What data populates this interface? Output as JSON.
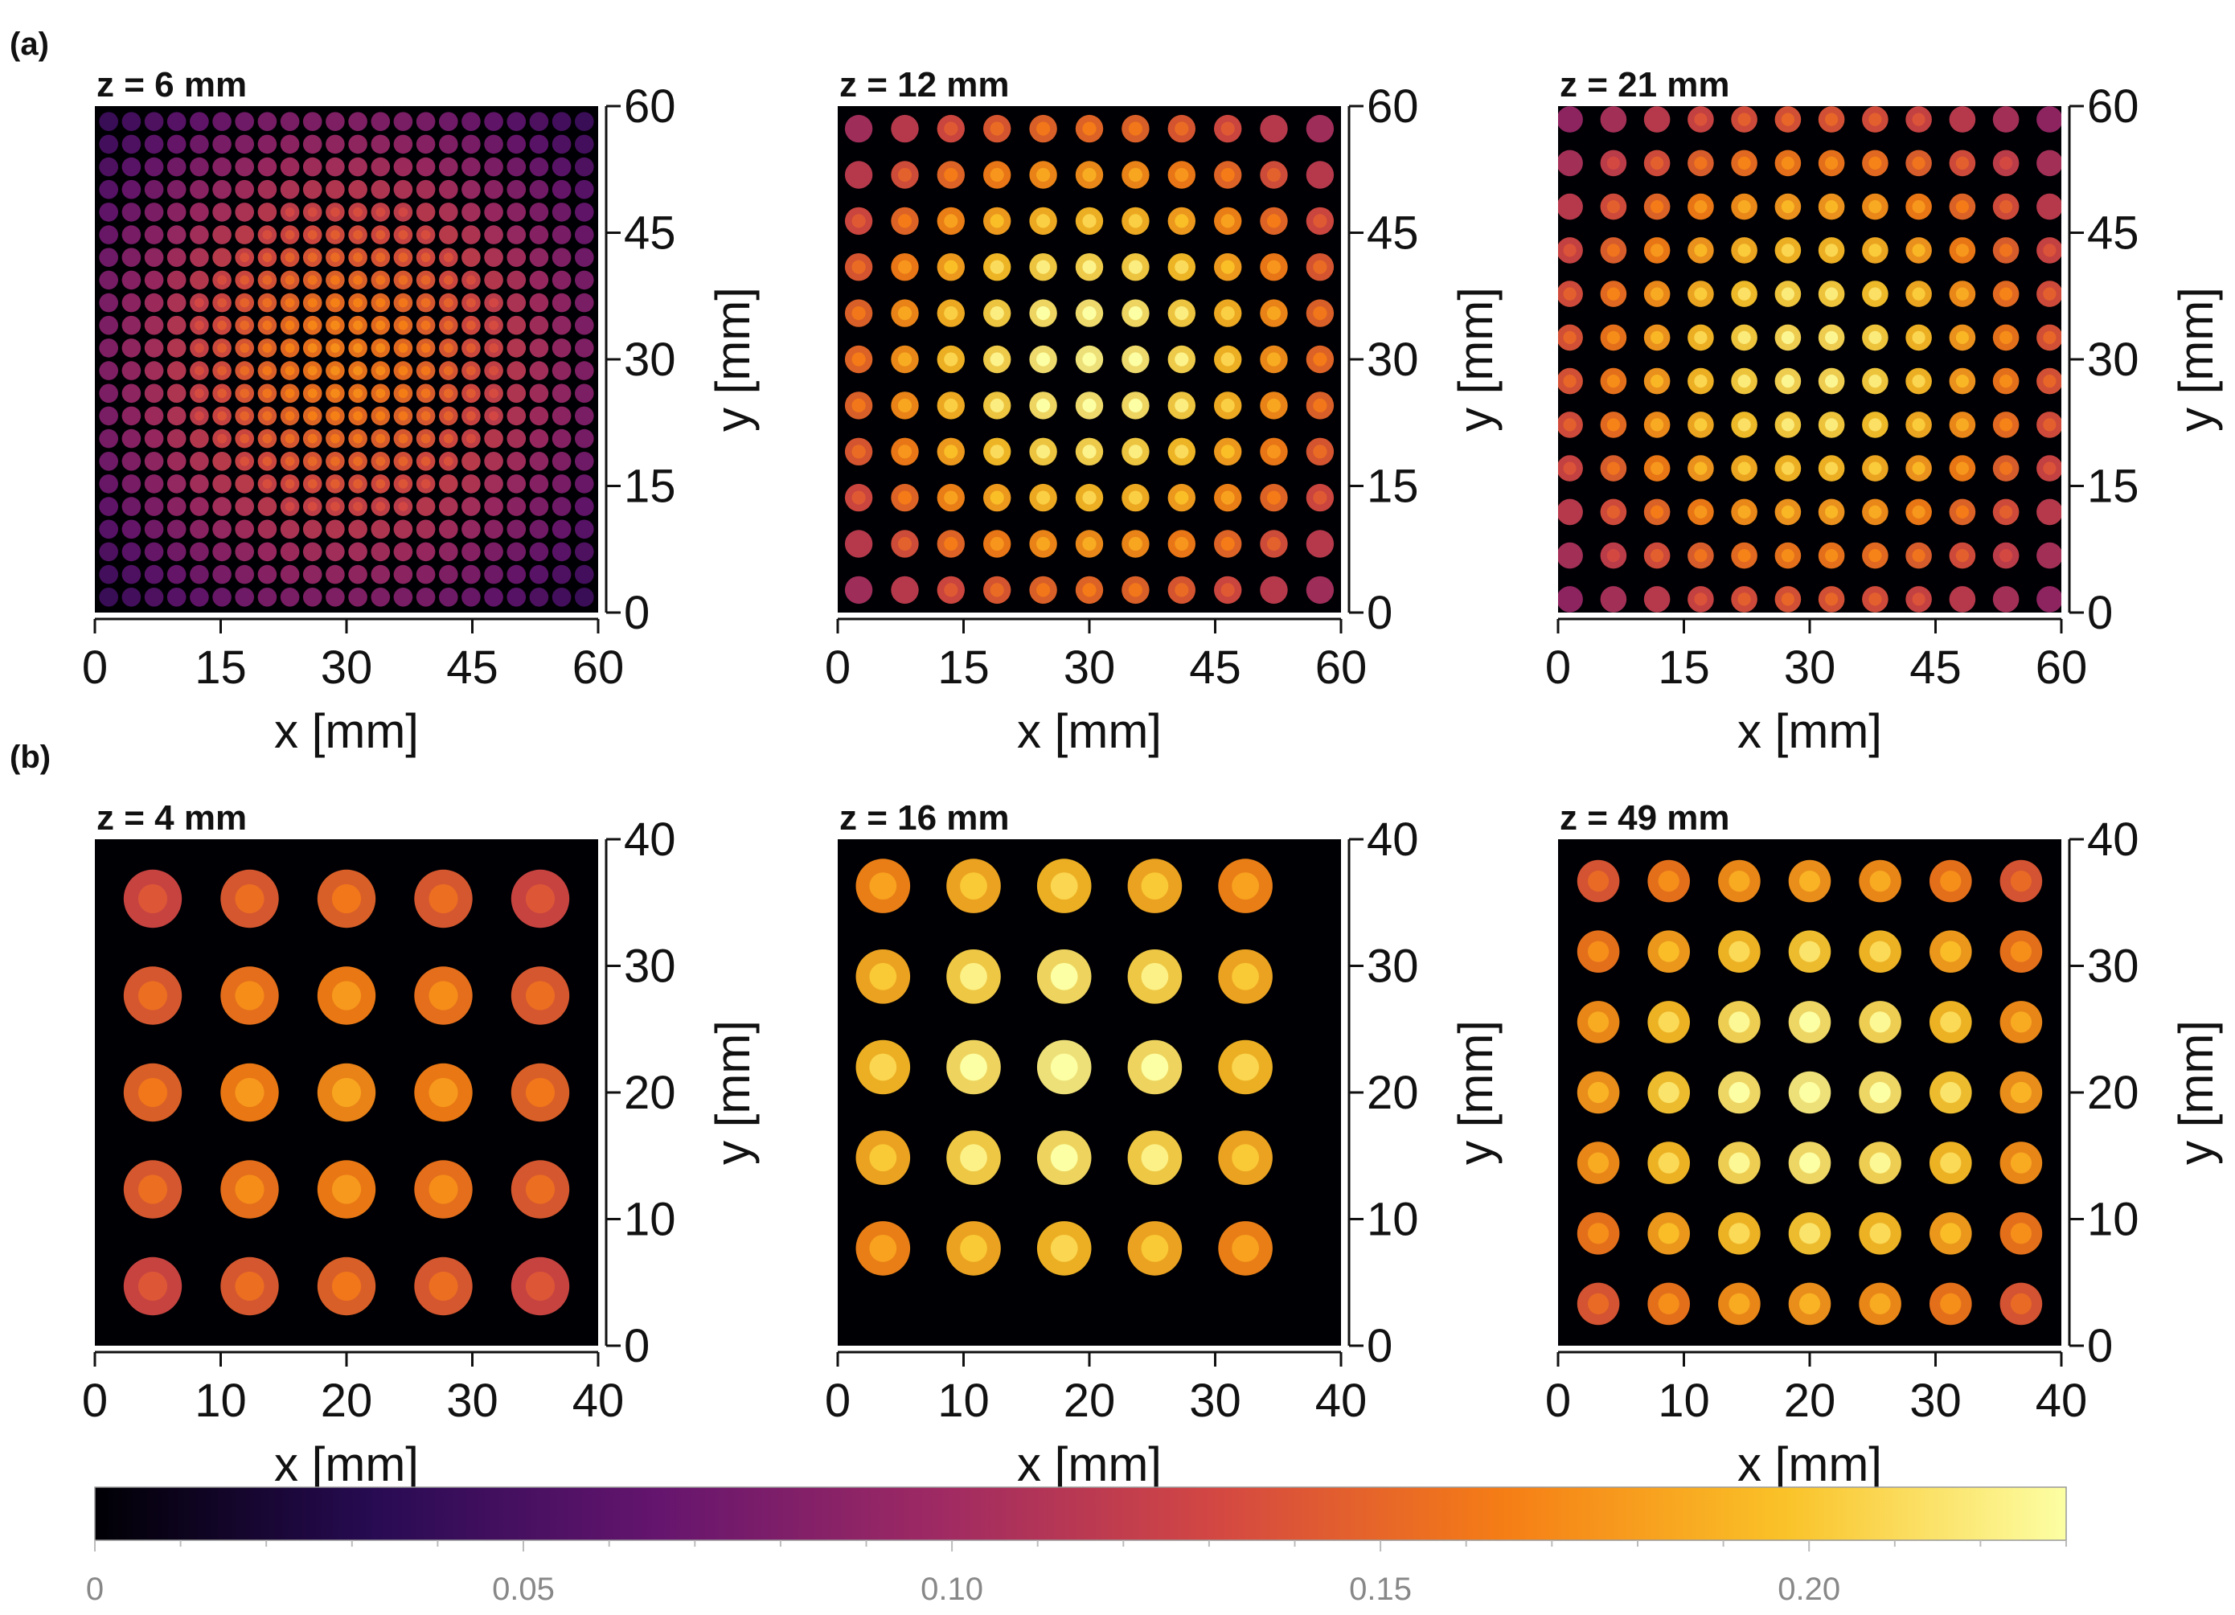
{
  "figure": {
    "panel_labels": [
      "(a)",
      "(b)"
    ],
    "colormap": [
      "#000004",
      "#280b53",
      "#65156e",
      "#9f2a63",
      "#d44842",
      "#f57d15",
      "#fac228",
      "#fcffa4"
    ],
    "colorbar": {
      "min": 0,
      "max": 0.23,
      "ticks": [
        0,
        0.05,
        0.1,
        0.15,
        0.2
      ],
      "tick_labels": [
        "0",
        "0.05",
        "0.10",
        "0.15",
        "0.20"
      ]
    }
  },
  "chart_data": [
    {
      "type": "heatmap",
      "row": "a",
      "title": "z = 6 mm",
      "xlabel": "x [mm]",
      "ylabel": "y [mm]",
      "xlim": [
        0,
        60
      ],
      "ylim": [
        0,
        60
      ],
      "xticks": [
        0,
        15,
        30,
        45,
        60
      ],
      "yticks": [
        0,
        15,
        30,
        45,
        60
      ],
      "spot_count": 22,
      "spot_pitch_mm": 2.7,
      "peak_x_mm": 30,
      "peak_y_mm": 30,
      "peak_intensity": 0.16
    },
    {
      "type": "heatmap",
      "row": "a",
      "title": "z = 12 mm",
      "xlabel": "x [mm]",
      "ylabel": "y [mm]",
      "xlim": [
        0,
        60
      ],
      "ylim": [
        0,
        60
      ],
      "xticks": [
        0,
        15,
        30,
        45,
        60
      ],
      "yticks": [
        0,
        15,
        30,
        45,
        60
      ],
      "spot_count": 11,
      "spot_pitch_mm": 5.5,
      "peak_x_mm": 30,
      "peak_y_mm": 30,
      "peak_intensity": 0.22
    },
    {
      "type": "heatmap",
      "row": "a",
      "title": "z = 21 mm",
      "xlabel": "x [mm]",
      "ylabel": "y [mm]",
      "xlim": [
        0,
        60
      ],
      "ylim": [
        0,
        60
      ],
      "xticks": [
        0,
        15,
        30,
        45,
        60
      ],
      "yticks": [
        0,
        15,
        30,
        45,
        60
      ],
      "spot_count": 12,
      "spot_pitch_mm": 5.2,
      "peak_x_mm": 30,
      "peak_y_mm": 30,
      "peak_intensity": 0.21
    },
    {
      "type": "heatmap",
      "row": "b",
      "title": "z = 4 mm",
      "xlabel": "x [mm]",
      "ylabel": "y [mm]",
      "xlim": [
        0,
        40
      ],
      "ylim": [
        0,
        40
      ],
      "xticks": [
        0,
        10,
        20,
        30,
        40
      ],
      "yticks": [
        0,
        10,
        20,
        30,
        40
      ],
      "spot_count": 5,
      "spot_pitch_mm": 7.7,
      "peak_x_mm": 20,
      "peak_y_mm": 20,
      "peak_intensity": 0.17
    },
    {
      "type": "heatmap",
      "row": "b",
      "title": "z = 16 mm",
      "xlabel": "x [mm]",
      "ylabel": "y [mm]",
      "xlim": [
        0,
        40
      ],
      "ylim": [
        0,
        40
      ],
      "xticks": [
        0,
        10,
        20,
        30,
        40
      ],
      "yticks": [
        0,
        10,
        20,
        30,
        40
      ],
      "spot_count": 5,
      "spot_pitch_mm": 7.2,
      "peak_x_mm": 18,
      "peak_y_mm": 22,
      "peak_intensity": 0.22
    },
    {
      "type": "heatmap",
      "row": "b",
      "title": "z = 49 mm",
      "xlabel": "x [mm]",
      "ylabel": "y [mm]",
      "xlim": [
        0,
        40
      ],
      "ylim": [
        0,
        40
      ],
      "xticks": [
        0,
        10,
        20,
        30,
        40
      ],
      "yticks": [
        0,
        10,
        20,
        30,
        40
      ],
      "spot_count": 7,
      "spot_pitch_mm": 5.6,
      "peak_x_mm": 20,
      "peak_y_mm": 20,
      "peak_intensity": 0.22
    }
  ]
}
